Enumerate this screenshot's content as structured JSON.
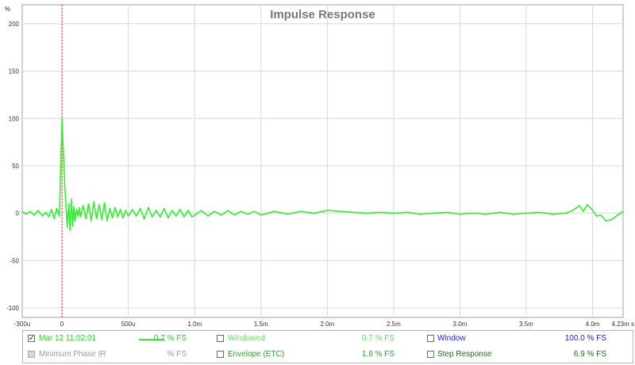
{
  "chart_data": {
    "type": "line",
    "title": "Impulse Response",
    "ylabel": "%",
    "xlabel": "",
    "x_unit": "s",
    "xlim": [
      -0.0003,
      0.00423
    ],
    "ylim": [
      -110,
      220
    ],
    "grid": true,
    "x_ticks": [
      {
        "value": -0.0003,
        "label": "-300u"
      },
      {
        "value": 0,
        "label": "0"
      },
      {
        "value": 0.0005,
        "label": "500u"
      },
      {
        "value": 0.001,
        "label": "1.0m"
      },
      {
        "value": 0.0015,
        "label": "1.5m"
      },
      {
        "value": 0.002,
        "label": "2.0m"
      },
      {
        "value": 0.0025,
        "label": "2.5m"
      },
      {
        "value": 0.003,
        "label": "3.0m"
      },
      {
        "value": 0.0035,
        "label": "3.5m"
      },
      {
        "value": 0.004,
        "label": "4.0m"
      },
      {
        "value": 0.00423,
        "label": "4.23m s"
      }
    ],
    "y_ticks": [
      {
        "value": 200,
        "label": "200"
      },
      {
        "value": 150,
        "label": "150"
      },
      {
        "value": 100,
        "label": "100"
      },
      {
        "value": 50,
        "label": "50"
      },
      {
        "value": 0,
        "label": "0"
      },
      {
        "value": -50,
        "label": "-50"
      },
      {
        "value": -100,
        "label": "-100"
      }
    ],
    "marker_line_x": 0,
    "series": [
      {
        "name": "Mar 12 11:02:01",
        "color": "#33ee33",
        "x": [
          -0.0003,
          -0.00027,
          -0.00024,
          -0.00021,
          -0.00018,
          -0.00015,
          -0.00012,
          -0.0001,
          -8e-05,
          -6e-05,
          -4e-05,
          -2e-05,
          0,
          2e-05,
          4e-05,
          5e-05,
          6e-05,
          7e-05,
          8e-05,
          9e-05,
          0.0001,
          0.00011,
          0.00012,
          0.00013,
          0.00014,
          0.00016,
          0.00018,
          0.0002,
          0.00022,
          0.00024,
          0.00026,
          0.00028,
          0.0003,
          0.00032,
          0.00034,
          0.00036,
          0.00038,
          0.0004,
          0.00042,
          0.00044,
          0.00046,
          0.00048,
          0.0005,
          0.00053,
          0.00056,
          0.00059,
          0.00062,
          0.00065,
          0.00068,
          0.00071,
          0.00074,
          0.00077,
          0.0008,
          0.00083,
          0.00086,
          0.00089,
          0.00092,
          0.00095,
          0.00098,
          0.001,
          0.00105,
          0.0011,
          0.00115,
          0.0012,
          0.00125,
          0.0013,
          0.00135,
          0.0014,
          0.00145,
          0.0015,
          0.0016,
          0.0017,
          0.0018,
          0.0019,
          0.002,
          0.0021,
          0.0022,
          0.0023,
          0.0024,
          0.0025,
          0.0026,
          0.0027,
          0.0028,
          0.0029,
          0.003,
          0.0031,
          0.0032,
          0.0033,
          0.0034,
          0.0035,
          0.0036,
          0.0037,
          0.0038,
          0.00385,
          0.0039,
          0.00393,
          0.00396,
          0.004,
          0.00403,
          0.00406,
          0.0041,
          0.00414,
          0.00418,
          0.00423
        ],
        "y": [
          2,
          -1,
          2,
          -2,
          3,
          -3,
          1,
          -4,
          4,
          -6,
          5,
          -3,
          100,
          30,
          -15,
          10,
          -18,
          15,
          -14,
          7,
          -8,
          4,
          -3,
          6,
          -4,
          8,
          -6,
          10,
          -8,
          12,
          -6,
          9,
          -7,
          11,
          -8,
          5,
          -5,
          6,
          -4,
          4,
          -5,
          3,
          -3,
          4,
          -3,
          5,
          -6,
          6,
          -4,
          3,
          -4,
          5,
          -5,
          3,
          -3,
          4,
          -4,
          3,
          -4,
          -2,
          3,
          -3,
          2,
          -2,
          3,
          -2,
          2,
          -1,
          2,
          -2,
          2,
          -1,
          2,
          0,
          3,
          2,
          1,
          0,
          1,
          0,
          1,
          -1,
          0,
          1,
          -1,
          0,
          -1,
          1,
          -1,
          0,
          1,
          -1,
          0,
          3,
          8,
          2,
          9,
          3,
          -3,
          -2,
          -8,
          -7,
          -3,
          2
        ]
      }
    ]
  },
  "legend": {
    "row1": {
      "series_checked": "✓",
      "series_name": "Mar 12 11:02:01",
      "series_value": "0.7 % FS",
      "windowed_label": "Windowed",
      "windowed_value": "0.7 % FS",
      "window_label": "Window",
      "window_value": "100.0 % FS"
    },
    "row2": {
      "minphase_label": "Minimum Phase IR",
      "minphase_value": "% FS",
      "envelope_label": "Envelope (ETC)",
      "envelope_value": "1.8 % FS",
      "step_label": "Step Response",
      "step_value": "6.9 % FS"
    },
    "colors": {
      "series": "#33ee33",
      "windowed": "#66dd66",
      "window": "#2222cc",
      "envelope": "#339933",
      "step": "#226622",
      "disabled": "#9a9a9a"
    }
  }
}
